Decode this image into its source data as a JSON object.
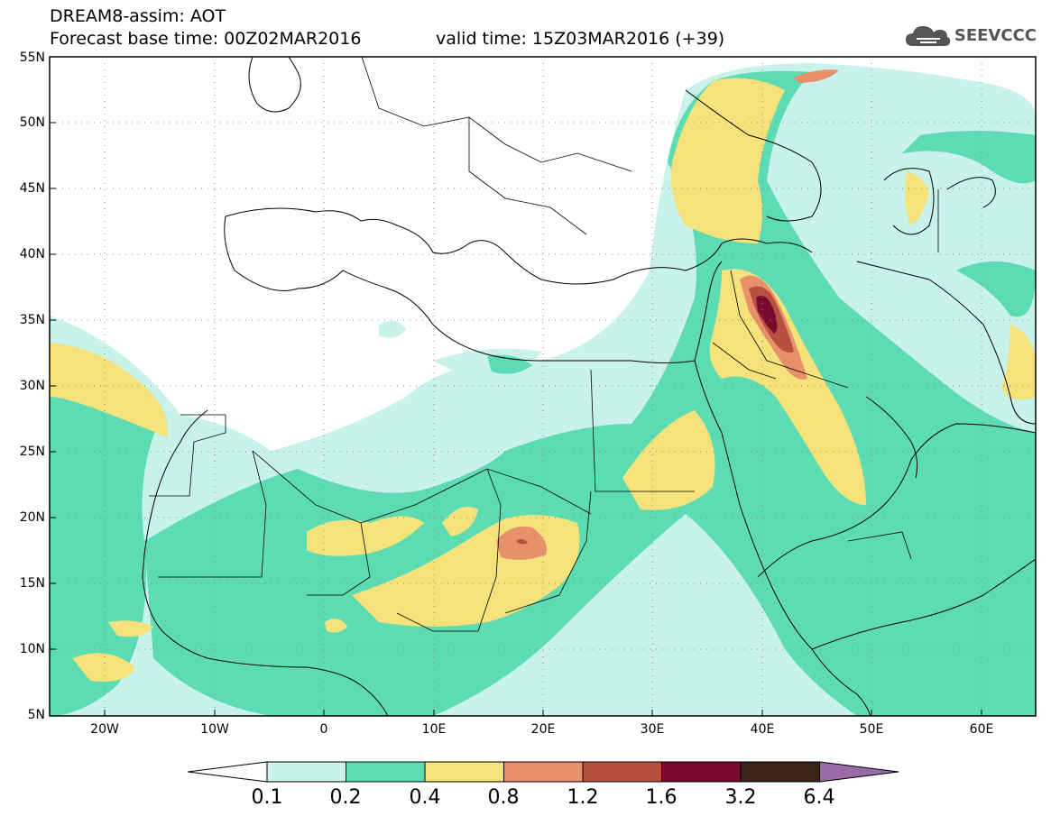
{
  "header": {
    "title_line1": "DREAM8-assim: AOT",
    "title_line2": "Forecast base time: 00Z02MAR2016",
    "valid_time": "valid time: 15Z03MAR2016 (+39)",
    "logo_text": "SEEVCCC",
    "logo_icon": "cloud-icon"
  },
  "map": {
    "lat_labels": [
      "55N",
      "50N",
      "45N",
      "40N",
      "35N",
      "30N",
      "25N",
      "20N",
      "15N",
      "10N",
      "5N"
    ],
    "lon_labels": [
      "20W",
      "10W",
      "0",
      "10E",
      "20E",
      "30E",
      "40E",
      "50E",
      "60E"
    ]
  },
  "colorbar": {
    "labels": [
      "0.1",
      "0.2",
      "0.4",
      "0.8",
      "1.2",
      "1.6",
      "3.2",
      "6.4"
    ],
    "colors": [
      "#ffffff",
      "#c8f2ea",
      "#5ddcb4",
      "#f5e27a",
      "#e8906a",
      "#b85040",
      "#7a0a2e",
      "#3a2418",
      "#9a6aa8"
    ]
  }
}
